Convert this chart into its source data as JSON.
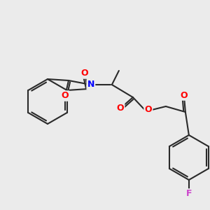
{
  "background_color": "#ebebeb",
  "bond_color": "#2a2a2a",
  "atom_colors": {
    "O": "#ff0000",
    "N": "#0000ff",
    "F": "#cc44cc",
    "C": "#2a2a2a"
  },
  "figsize": [
    3.0,
    3.0
  ],
  "dpi": 100
}
